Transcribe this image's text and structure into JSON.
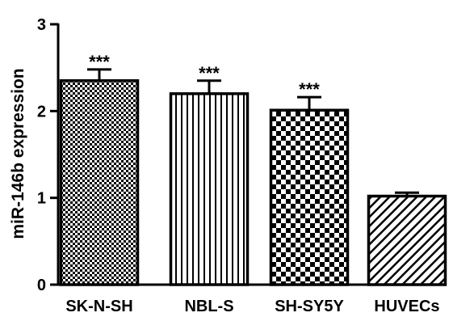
{
  "chart_data": {
    "type": "bar",
    "categories": [
      "SK-N-SH",
      "NBL-S",
      "SH-SY5Y",
      "HUVECs"
    ],
    "values": [
      2.35,
      2.2,
      2.01,
      1.02
    ],
    "errors": [
      0.13,
      0.15,
      0.15,
      0.04
    ],
    "significance": [
      "***",
      "***",
      "***",
      ""
    ],
    "patterns": [
      "fine-checker",
      "vertical-stripes",
      "checker",
      "diagonal-stripes"
    ],
    "title": "",
    "xlabel": "",
    "ylabel": "miR-146b expression",
    "ylim": [
      0,
      3
    ],
    "yticks": [
      0,
      1,
      2,
      3
    ],
    "grid": false,
    "colors": {
      "bar_stroke": "#000000",
      "pattern": "#000000",
      "background": "#ffffff"
    }
  }
}
